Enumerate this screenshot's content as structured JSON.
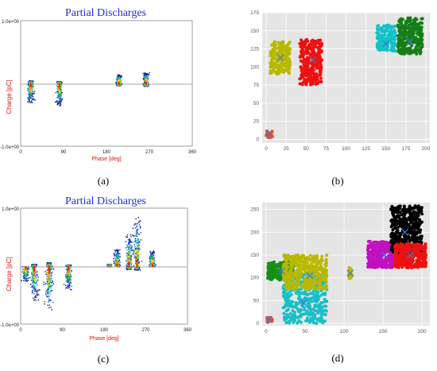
{
  "panels": {
    "a": {
      "label": "(a)",
      "title": "Partial Discharges",
      "ylabel": "Charge [pC]",
      "xlabel": "Phase [deg]",
      "ymax_tick": "1.0e+00",
      "ymin_tick": "-1.0e+00",
      "xticks": [
        "0",
        "90",
        "180",
        "270",
        "360"
      ],
      "clusters": [
        {
          "phase": 20,
          "polarity": "pos",
          "height": 0.05
        },
        {
          "phase": 20,
          "polarity": "neg",
          "height": 0.3
        },
        {
          "phase": 80,
          "polarity": "pos",
          "height": 0.04
        },
        {
          "phase": 80,
          "polarity": "neg",
          "height": 0.35
        },
        {
          "phase": 205,
          "polarity": "pos",
          "height": 0.15
        },
        {
          "phase": 205,
          "polarity": "neg",
          "height": 0.03
        },
        {
          "phase": 262,
          "polarity": "pos",
          "height": 0.18
        },
        {
          "phase": 262,
          "polarity": "neg",
          "height": 0.04
        }
      ]
    },
    "b": {
      "label": "(b)",
      "yticks": [
        "0",
        "25",
        "50",
        "75",
        "100",
        "125",
        "150",
        "175"
      ],
      "xticks": [
        "0",
        "25",
        "50",
        "75",
        "100",
        "125",
        "150",
        "175",
        "200"
      ],
      "chart_data": {
        "type": "scatter",
        "xlim": [
          -5,
          205
        ],
        "ylim": [
          -5,
          175
        ],
        "clusters": [
          {
            "color": "#e05030",
            "center": [
              3,
              8
            ],
            "x_range": [
              0,
              8
            ],
            "y_range": [
              2,
              12
            ]
          },
          {
            "color": "#b8b800",
            "center": [
              18,
              113
            ],
            "x_range": [
              5,
              30
            ],
            "y_range": [
              90,
              135
            ]
          },
          {
            "color": "#ee1111",
            "center": [
              58,
              110
            ],
            "x_range": [
              42,
              70
            ],
            "y_range": [
              75,
              138
            ]
          },
          {
            "color": "#11c2c8",
            "center": [
              150,
              132
            ],
            "x_range": [
              138,
              162
            ],
            "y_range": [
              122,
              158
            ]
          },
          {
            "color": "#157d15",
            "center": [
              180,
              135
            ],
            "x_range": [
              165,
              196
            ],
            "y_range": [
              118,
              168
            ]
          }
        ],
        "centroid_marker": "x",
        "centroid_color": "#3a7bd5"
      }
    },
    "c": {
      "label": "(c)",
      "title": "Partial Discharges",
      "ylabel": "Charge [pC]",
      "xlabel": "Phase [deg]",
      "ymax_tick": "1.0e+00",
      "ymin_tick": "-1.0e+00",
      "xticks": [
        "0",
        "90",
        "180",
        "270",
        "360"
      ],
      "clusters": [
        {
          "phase": 10,
          "polarity": "neg",
          "height": 0.25
        },
        {
          "phase": 28,
          "polarity": "neg",
          "height": 0.6
        },
        {
          "phase": 28,
          "polarity": "pos",
          "height": 0.04
        },
        {
          "phase": 60,
          "polarity": "neg",
          "height": 0.75
        },
        {
          "phase": 60,
          "polarity": "pos",
          "height": 0.07
        },
        {
          "phase": 102,
          "polarity": "neg",
          "height": 0.4
        },
        {
          "phase": 102,
          "polarity": "pos",
          "height": 0.03
        },
        {
          "phase": 190,
          "polarity": "pos",
          "height": 0.04
        },
        {
          "phase": 207,
          "polarity": "pos",
          "height": 0.3
        },
        {
          "phase": 233,
          "polarity": "pos",
          "height": 0.55
        },
        {
          "phase": 233,
          "polarity": "neg",
          "height": 0.05
        },
        {
          "phase": 250,
          "polarity": "pos",
          "height": 0.85
        },
        {
          "phase": 250,
          "polarity": "neg",
          "height": 0.06
        },
        {
          "phase": 283,
          "polarity": "pos",
          "height": 0.28
        }
      ]
    },
    "d": {
      "label": "(d)",
      "yticks": [
        "0",
        "50",
        "100",
        "150",
        "200",
        "250"
      ],
      "xticks": [
        "0",
        "50",
        "100",
        "150",
        "200"
      ],
      "chart_data": {
        "type": "scatter",
        "xlim": [
          -5,
          210
        ],
        "ylim": [
          -5,
          265
        ],
        "clusters": [
          {
            "color": "#e05030",
            "center": [
              4,
              8
            ],
            "x_range": [
              0,
              8
            ],
            "y_range": [
              2,
              14
            ]
          },
          {
            "color": "#159015",
            "center": [
              20,
              115
            ],
            "x_range": [
              2,
              35
            ],
            "y_range": [
              95,
              135
            ]
          },
          {
            "color": "#18bfc8",
            "center": [
              48,
              45
            ],
            "x_range": [
              22,
              78
            ],
            "y_range": [
              0,
              110
            ]
          },
          {
            "color": "#b8b800",
            "center": [
              56,
              105
            ],
            "x_range": [
              22,
              78
            ],
            "y_range": [
              75,
              150
            ]
          },
          {
            "color": "#b8b800",
            "center": [
              108,
              110
            ],
            "x_range": [
              106,
              110
            ],
            "y_range": [
              98,
              125
            ]
          },
          {
            "color": "#c010c0",
            "center": [
              152,
              150
            ],
            "x_range": [
              130,
              165
            ],
            "y_range": [
              122,
              180
            ]
          },
          {
            "color": "#000000",
            "center": [
              178,
              200
            ],
            "x_range": [
              160,
              200
            ],
            "y_range": [
              150,
              258
            ]
          },
          {
            "color": "#ee1111",
            "center": [
              185,
              150
            ],
            "x_range": [
              165,
              205
            ],
            "y_range": [
              122,
              175
            ]
          }
        ],
        "centroid_marker": "x",
        "centroid_color": "#3a7bd5"
      }
    }
  }
}
